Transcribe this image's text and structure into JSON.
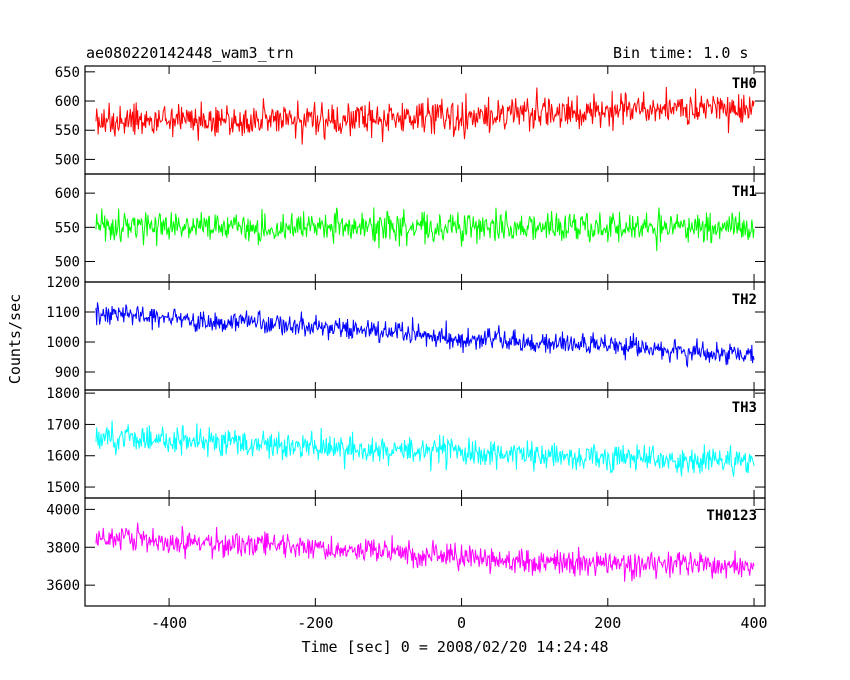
{
  "header": {
    "left_title": "ae080220142448_wam3_trn",
    "right_title": "Bin time: 1.0 s"
  },
  "chart_data": {
    "type": "line",
    "xlabel": "Time [sec] 0 = 2008/02/20 14:24:48",
    "ylabel": "Counts/sec",
    "xlim": [
      -515,
      415
    ],
    "x_ticks": [
      -400,
      -200,
      0,
      200,
      400
    ],
    "x_range_data": [
      -500,
      400
    ],
    "bin_time_s": 1.0,
    "grid": false,
    "panels": [
      {
        "name": "TH0",
        "color": "#ff0000",
        "ylim": [
          475,
          660
        ],
        "y_ticks": [
          500,
          550,
          600,
          650
        ],
        "trend": {
          "x": [
            -500,
            -200,
            0,
            100,
            200,
            400
          ],
          "y": [
            565,
            568,
            572,
            578,
            585,
            590
          ]
        },
        "spread": 28
      },
      {
        "name": "TH1",
        "color": "#00ff00",
        "ylim": [
          470,
          628
        ],
        "y_ticks": [
          500,
          550,
          600
        ],
        "trend": {
          "x": [
            -500,
            400
          ],
          "y": [
            550,
            550
          ]
        },
        "spread": 22
      },
      {
        "name": "TH2",
        "color": "#0000ff",
        "ylim": [
          840,
          1200
        ],
        "y_ticks": [
          900,
          1000,
          1100,
          1200
        ],
        "trend": {
          "x": [
            -500,
            -250,
            0,
            200,
            400
          ],
          "y": [
            1095,
            1060,
            1010,
            985,
            955
          ]
        },
        "spread": 35
      },
      {
        "name": "TH3",
        "color": "#00ffff",
        "ylim": [
          1465,
          1810
        ],
        "y_ticks": [
          1500,
          1600,
          1700,
          1800
        ],
        "trend": {
          "x": [
            -500,
            -250,
            0,
            200,
            400
          ],
          "y": [
            1660,
            1635,
            1610,
            1595,
            1585
          ]
        },
        "spread": 45
      },
      {
        "name": "TH0123",
        "color": "#ff00ff",
        "ylim": [
          3490,
          4060
        ],
        "y_ticks": [
          3600,
          3800,
          4000
        ],
        "trend": {
          "x": [
            -500,
            -250,
            0,
            200,
            400
          ],
          "y": [
            3850,
            3810,
            3745,
            3710,
            3700
          ]
        },
        "spread": 65
      }
    ]
  }
}
